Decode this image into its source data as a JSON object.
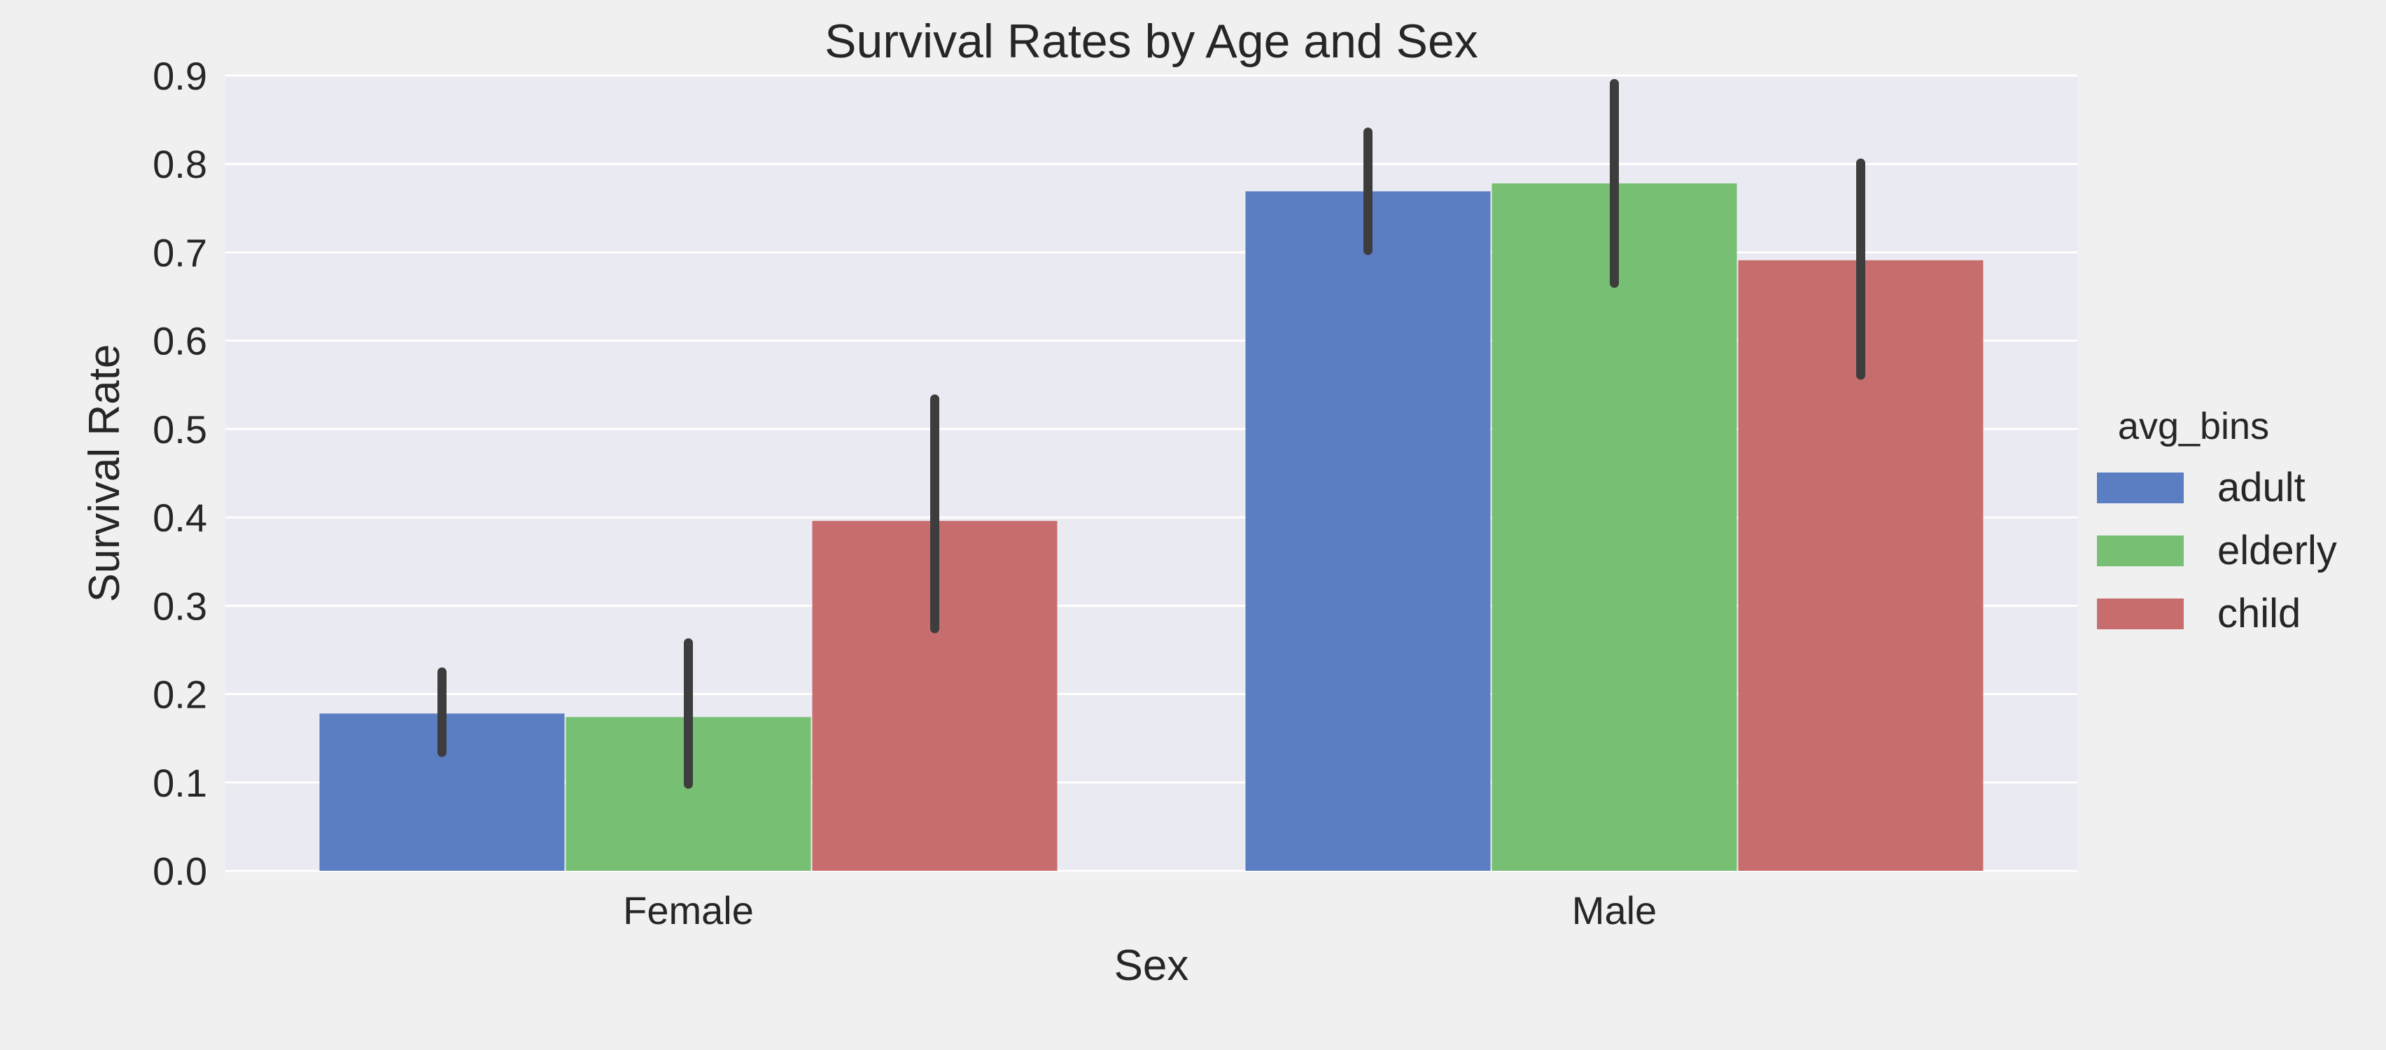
{
  "chart_data": {
    "type": "bar",
    "title": "Survival Rates by Age and Sex",
    "xlabel": "Sex",
    "ylabel": "Survival Rate",
    "categories": [
      "Female",
      "Male"
    ],
    "ylim": [
      0,
      0.9
    ],
    "yticks": [
      "0.0",
      "0.1",
      "0.2",
      "0.3",
      "0.4",
      "0.5",
      "0.6",
      "0.7",
      "0.8",
      "0.9"
    ],
    "grid": true,
    "legend": {
      "title": "avg_bins",
      "placement": "right"
    },
    "series": [
      {
        "name": "adult",
        "color": "#5b7dc2",
        "values": [
          0.178,
          0.769
        ],
        "ci_low": [
          0.134,
          0.702
        ],
        "ci_high": [
          0.225,
          0.836
        ]
      },
      {
        "name": "elderly",
        "color": "#77c073",
        "values": [
          0.174,
          0.778
        ],
        "ci_low": [
          0.098,
          0.665
        ],
        "ci_high": [
          0.258,
          0.891
        ]
      },
      {
        "name": "child",
        "color": "#c86d6d",
        "values": [
          0.396,
          0.691
        ],
        "ci_low": [
          0.274,
          0.561
        ],
        "ci_high": [
          0.534,
          0.801
        ]
      }
    ],
    "errorbar_color": "#3d3d3d",
    "plot_background": "#eaeaf2",
    "grid_color": "#ffffff"
  }
}
